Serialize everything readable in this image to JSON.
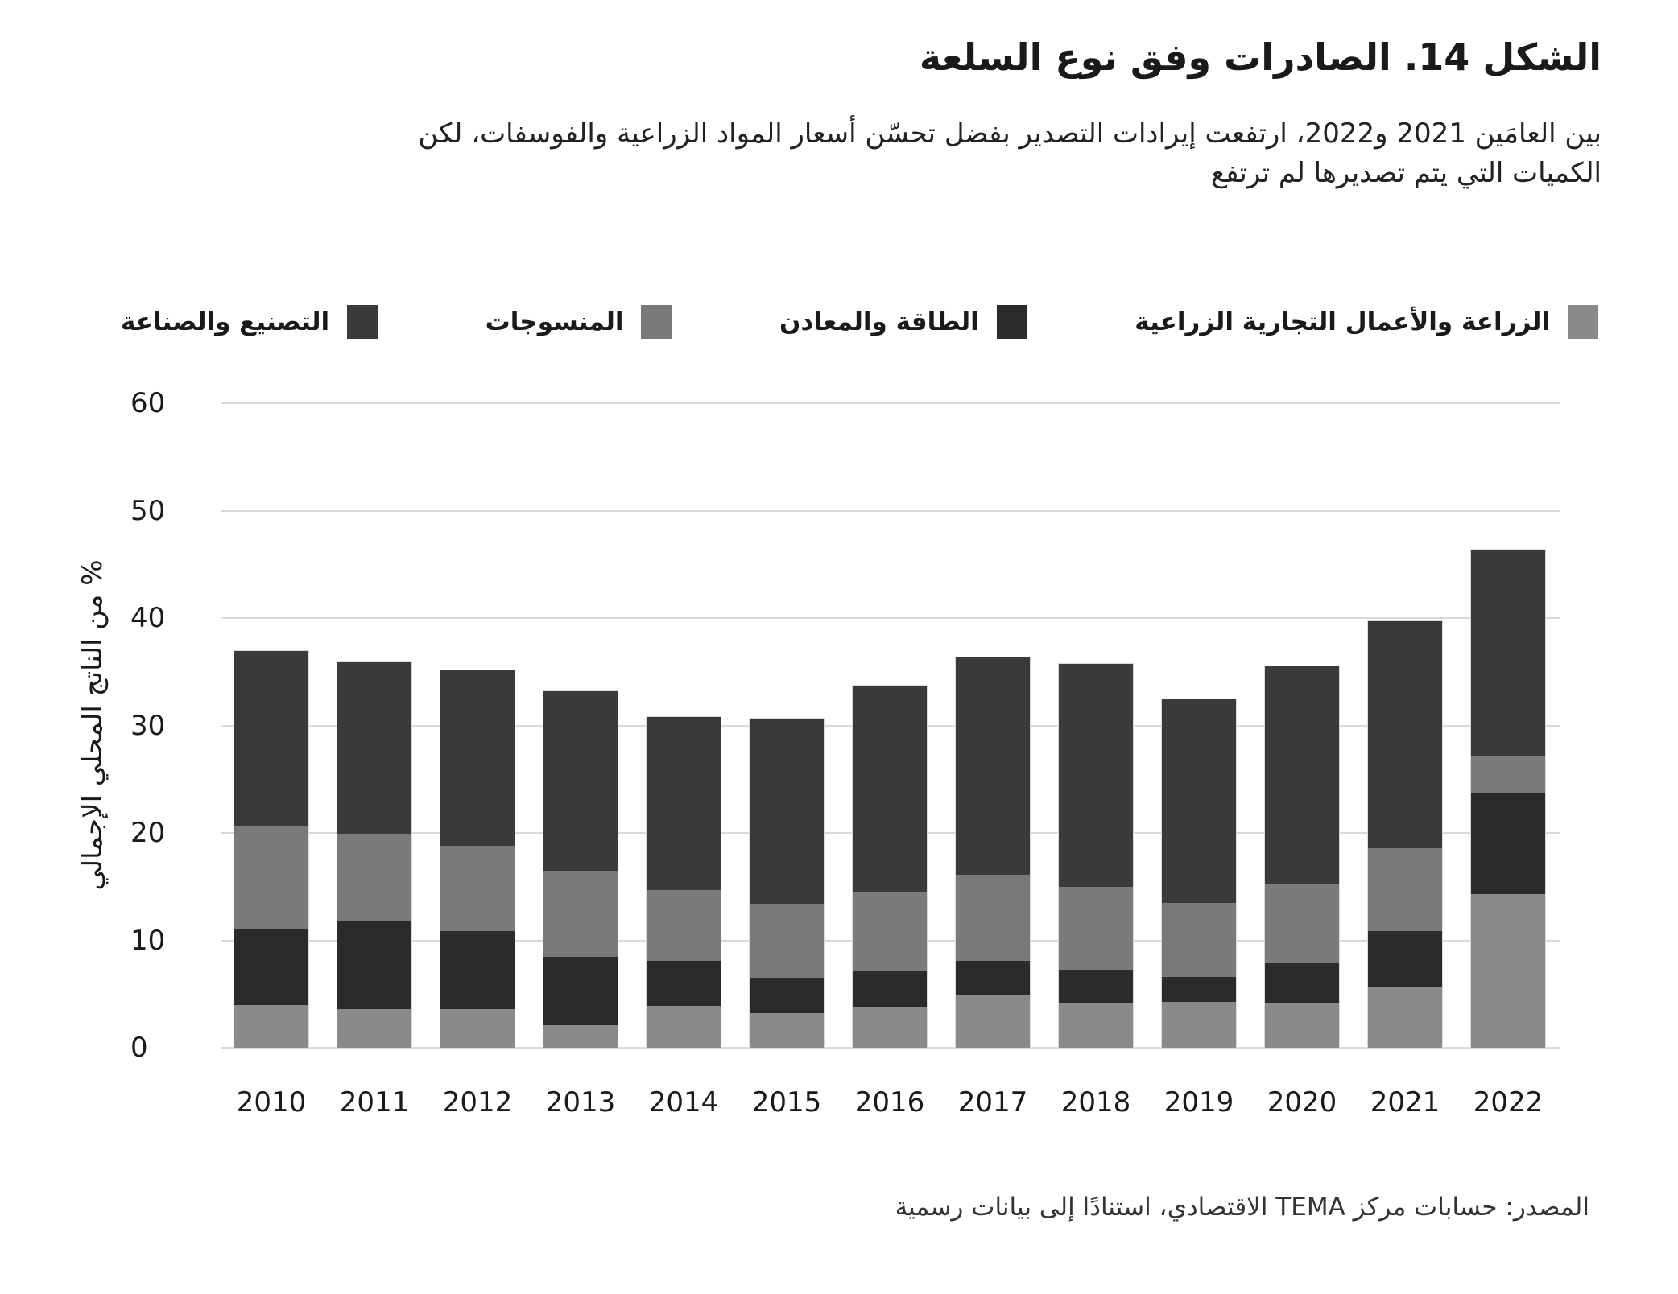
{
  "figure": {
    "title": "الشكل 14. الصادرات وفق نوع السلعة",
    "subtitle_line1": "بين العامَين 2021 و2022، ارتفعت إيرادات التصدير بفضل تحسّن أسعار المواد الزراعية والفوسفات، لكن",
    "subtitle_line2": "الكميات التي يتم تصديرها لم ترتفع",
    "source": "المصدر: حسابات مركز TEMA الاقتصادي، استنادًا إلى بيانات رسمية"
  },
  "chart_data": {
    "type": "bar",
    "stacked": true,
    "categories": [
      "2010",
      "2011",
      "2012",
      "2013",
      "2014",
      "2015",
      "2016",
      "2017",
      "2018",
      "2019",
      "2020",
      "2021",
      "2022"
    ],
    "series": [
      {
        "name": "الزراعة والأعمال التجارية الزراعية",
        "color": "#8a8a8a",
        "values": [
          4.0,
          3.6,
          3.6,
          2.1,
          3.9,
          3.2,
          3.8,
          4.9,
          4.1,
          4.3,
          4.2,
          5.7,
          14.3
        ]
      },
      {
        "name": "الطاقة والمعادن",
        "color": "#2b2b2d",
        "values": [
          7.0,
          8.2,
          7.3,
          6.4,
          4.2,
          3.3,
          3.3,
          3.2,
          3.1,
          2.3,
          3.7,
          5.2,
          9.4
        ]
      },
      {
        "name": "المنسوجات",
        "color": "#7a7a7a",
        "values": [
          9.7,
          8.1,
          7.9,
          8.0,
          6.6,
          6.9,
          7.4,
          8.0,
          7.8,
          6.9,
          7.3,
          7.7,
          3.5
        ]
      },
      {
        "name": "التصنيع والصناعة",
        "color": "#3a3a3c",
        "values": [
          16.2,
          16.0,
          16.3,
          16.7,
          16.1,
          17.2,
          19.2,
          20.2,
          20.7,
          18.9,
          20.3,
          21.1,
          19.2
        ]
      }
    ],
    "totals": [
      36.9,
      35.9,
      35.1,
      33.2,
      30.8,
      30.6,
      33.7,
      36.3,
      35.7,
      32.4,
      35.5,
      39.7,
      46.4
    ],
    "ylabel": "% من الناتج المحلي الإجمالي",
    "ylim": [
      0,
      60
    ],
    "yticks": [
      0,
      10,
      20,
      30,
      40,
      50,
      60
    ],
    "grid": true,
    "gridline_color": "#d9d9d9",
    "legend_position": "top"
  }
}
